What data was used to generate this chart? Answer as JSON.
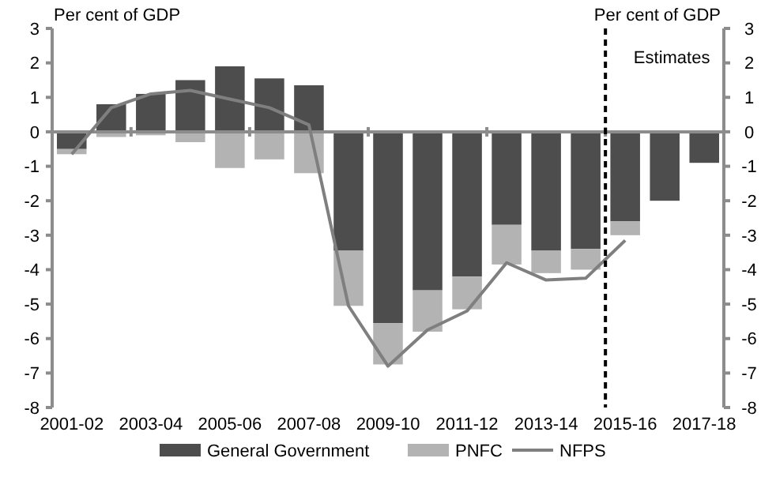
{
  "chart_data": {
    "type": "bar",
    "stacked": true,
    "categories": [
      "2001-02",
      null,
      "2003-04",
      null,
      "2005-06",
      null,
      "2007-08",
      null,
      "2009-10",
      null,
      "2011-12",
      null,
      "2013-14",
      null,
      "2015-16",
      null,
      "2017-18"
    ],
    "series": [
      {
        "name": "General Government",
        "color": "#4d4d4d",
        "values": [
          -0.5,
          0.8,
          1.1,
          1.5,
          1.9,
          1.55,
          1.35,
          -3.45,
          -5.55,
          -4.6,
          -4.2,
          -2.7,
          -3.45,
          -3.4,
          -2.6,
          -2.0,
          -0.9
        ]
      },
      {
        "name": "PNFC",
        "color": "#b3b3b3",
        "values": [
          -0.15,
          -0.15,
          -0.1,
          -0.3,
          -1.05,
          -0.8,
          -1.2,
          -1.6,
          -1.2,
          -1.2,
          -0.95,
          -1.15,
          -0.65,
          -0.6,
          -0.4,
          null,
          null
        ]
      },
      {
        "name": "NFPS",
        "type": "line",
        "color": "#7f7f7f",
        "values": [
          -0.65,
          0.7,
          1.1,
          1.2,
          0.95,
          0.7,
          0.2,
          -5.05,
          -6.8,
          -5.75,
          -5.2,
          -3.8,
          -4.3,
          -4.25,
          -3.15,
          null,
          null
        ]
      }
    ],
    "ylabel": "Per cent of GDP",
    "y2label": "Per cent of GDP",
    "ylim": [
      -8,
      3
    ],
    "yticks": [
      -8,
      -7,
      -6,
      -5,
      -4,
      -3,
      -2,
      -1,
      0,
      1,
      2,
      3
    ],
    "y2lim": [
      -8,
      3
    ],
    "y2ticks": [
      -8,
      -7,
      -6,
      -5,
      -4,
      -3,
      -2,
      -1,
      0,
      1,
      2,
      3
    ],
    "ref_lines": [
      {
        "axis": "x",
        "value": "2015-16",
        "label": "Estimates",
        "color": "#000000",
        "line_style": "dashed"
      }
    ],
    "grid": false,
    "legend": "bottom"
  }
}
